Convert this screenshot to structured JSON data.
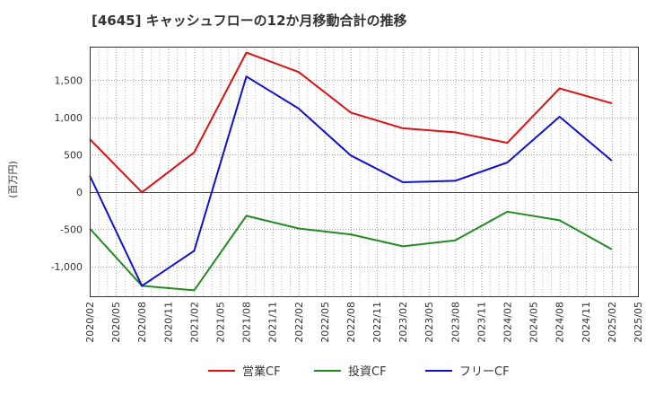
{
  "chart_data": {
    "type": "line",
    "title": "[4645]  キャッシュフローの12か月移動合計の推移",
    "ylabel": "(百万円)",
    "xlabel": "",
    "ylim": [
      -1400,
      1950
    ],
    "yticks": [
      -1000,
      -500,
      0,
      500,
      1000,
      1500
    ],
    "ytick_labels": [
      "-1,000",
      "-500",
      "0",
      "500",
      "1,000",
      "1,500"
    ],
    "x_ticks": [
      "2020/02",
      "2020/05",
      "2020/08",
      "2020/11",
      "2021/02",
      "2021/05",
      "2021/08",
      "2021/11",
      "2022/02",
      "2022/05",
      "2022/08",
      "2022/11",
      "2023/02",
      "2023/05",
      "2023/08",
      "2023/11",
      "2024/02",
      "2024/05",
      "2024/08",
      "2024/11",
      "2025/02",
      "2025/05"
    ],
    "grid": true,
    "legend_position": "bottom",
    "series": [
      {
        "name": "営業CF",
        "color": "#dd1111",
        "points": [
          {
            "x": "2020/02",
            "y": 710
          },
          {
            "x": "2020/08",
            "y": -5
          },
          {
            "x": "2021/02",
            "y": 530
          },
          {
            "x": "2021/08",
            "y": 1870
          },
          {
            "x": "2022/02",
            "y": 1610
          },
          {
            "x": "2022/08",
            "y": 1065
          },
          {
            "x": "2023/02",
            "y": 855
          },
          {
            "x": "2023/08",
            "y": 800
          },
          {
            "x": "2024/02",
            "y": 660
          },
          {
            "x": "2024/08",
            "y": 1390
          },
          {
            "x": "2025/02",
            "y": 1190
          }
        ]
      },
      {
        "name": "投資CF",
        "color": "#228b22",
        "points": [
          {
            "x": "2020/02",
            "y": -490
          },
          {
            "x": "2020/08",
            "y": -1260
          },
          {
            "x": "2021/02",
            "y": -1320
          },
          {
            "x": "2021/08",
            "y": -320
          },
          {
            "x": "2022/02",
            "y": -490
          },
          {
            "x": "2022/08",
            "y": -570
          },
          {
            "x": "2023/02",
            "y": -730
          },
          {
            "x": "2023/08",
            "y": -650
          },
          {
            "x": "2024/02",
            "y": -265
          },
          {
            "x": "2024/08",
            "y": -380
          },
          {
            "x": "2025/02",
            "y": -770
          }
        ]
      },
      {
        "name": "フリーCF",
        "color": "#1111cc",
        "points": [
          {
            "x": "2020/02",
            "y": 220
          },
          {
            "x": "2020/08",
            "y": -1260
          },
          {
            "x": "2021/02",
            "y": -790
          },
          {
            "x": "2021/08",
            "y": 1550
          },
          {
            "x": "2022/02",
            "y": 1120
          },
          {
            "x": "2022/08",
            "y": 490
          },
          {
            "x": "2023/02",
            "y": 130
          },
          {
            "x": "2023/08",
            "y": 150
          },
          {
            "x": "2024/02",
            "y": 395
          },
          {
            "x": "2024/08",
            "y": 1010
          },
          {
            "x": "2025/02",
            "y": 420
          }
        ]
      }
    ]
  }
}
